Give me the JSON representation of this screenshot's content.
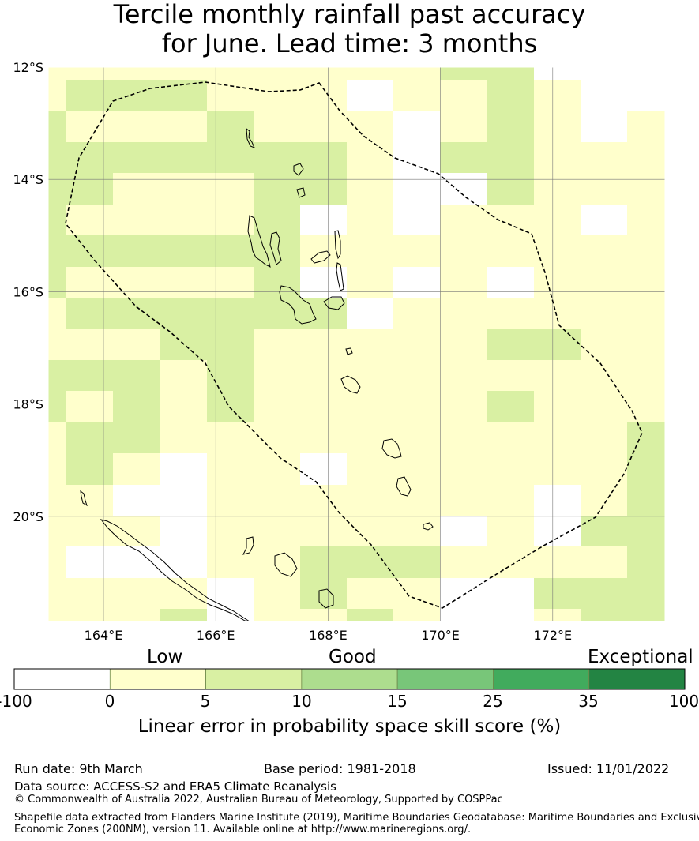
{
  "title_lines": [
    "Tercile monthly rainfall past accuracy",
    "for June. Lead time: 3 months"
  ],
  "map": {
    "lat_labels": [
      "12°S",
      "14°S",
      "16°S",
      "18°S",
      "20°S"
    ],
    "lon_labels": [
      "164°E",
      "166°E",
      "168°E",
      "170°E",
      "172°E"
    ],
    "lat_ticks": [
      -12,
      -14,
      -16,
      -18,
      -20
    ],
    "lon_ticks": [
      164,
      166,
      168,
      170,
      172
    ]
  },
  "colorbar": {
    "categories": [
      "Low",
      "Good",
      "Exceptional"
    ],
    "ticks": [
      "-100",
      "0",
      "5",
      "10",
      "15",
      "25",
      "35",
      "100"
    ],
    "colors": [
      "#ffffff",
      "#ffffcc",
      "#d9f0a3",
      "#addd8e",
      "#78c679",
      "#41ab5d",
      "#238443"
    ],
    "label": "Linear error in probability space skill score (%)"
  },
  "footer": {
    "run_date": "Run date: 9th March",
    "base_period": "Base period: 1981-2018",
    "issued": "Issued: 11/01/2022",
    "data_source": "Data source: ACCESS-S2 and ERA5 Climate Reanalysis",
    "copyright": "© Commonwealth of Australia 2022, Australian Bureau of Meteorology, Supported by COSPPac",
    "shapefile_line1": "Shapefile data extracted from Flanders Marine Institute (2019), Maritime Boundaries Geodatabase: Maritime Boundaries and Exclusive",
    "shapefile_line2": "Economic Zones (200NM), version 11. Available online at http://www.marineregions.org/."
  }
}
